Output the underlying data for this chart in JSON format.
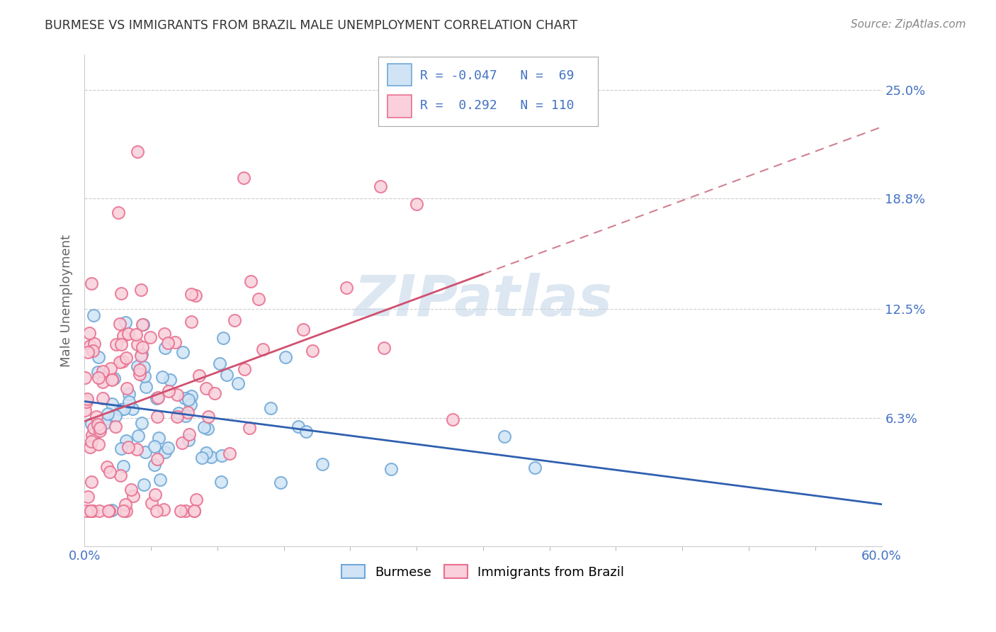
{
  "title": "BURMESE VS IMMIGRANTS FROM BRAZIL MALE UNEMPLOYMENT CORRELATION CHART",
  "source": "Source: ZipAtlas.com",
  "ylabel": "Male Unemployment",
  "xlim": [
    0.0,
    0.6
  ],
  "ylim": [
    -0.01,
    0.27
  ],
  "ytick_vals": [
    0.063,
    0.125,
    0.188,
    0.25
  ],
  "ytick_labels": [
    "6.3%",
    "12.5%",
    "18.8%",
    "25.0%"
  ],
  "xtick_vals": [
    0.0,
    0.6
  ],
  "xtick_labels": [
    "0.0%",
    "60.0%"
  ],
  "burmese_color": "#6fa8d8",
  "burmese_face_color": "#d0e4f5",
  "brazil_color": "#e87090",
  "brazil_face_color": "#f9d0db",
  "burmese_line_color": "#3060b0",
  "brazil_line_color": "#d05070",
  "brazil_dashed_color": "#d08090",
  "R_burmese": -0.047,
  "N_burmese": 69,
  "R_brazil": 0.292,
  "N_brazil": 110,
  "legend_text_color": "#4472c4",
  "grid_color": "#cccccc",
  "background_color": "#ffffff",
  "watermark_color": "#c5d8ea",
  "watermark_text": "ZIPatlas",
  "title_color": "#333333",
  "source_color": "#888888",
  "ylabel_color": "#666666"
}
